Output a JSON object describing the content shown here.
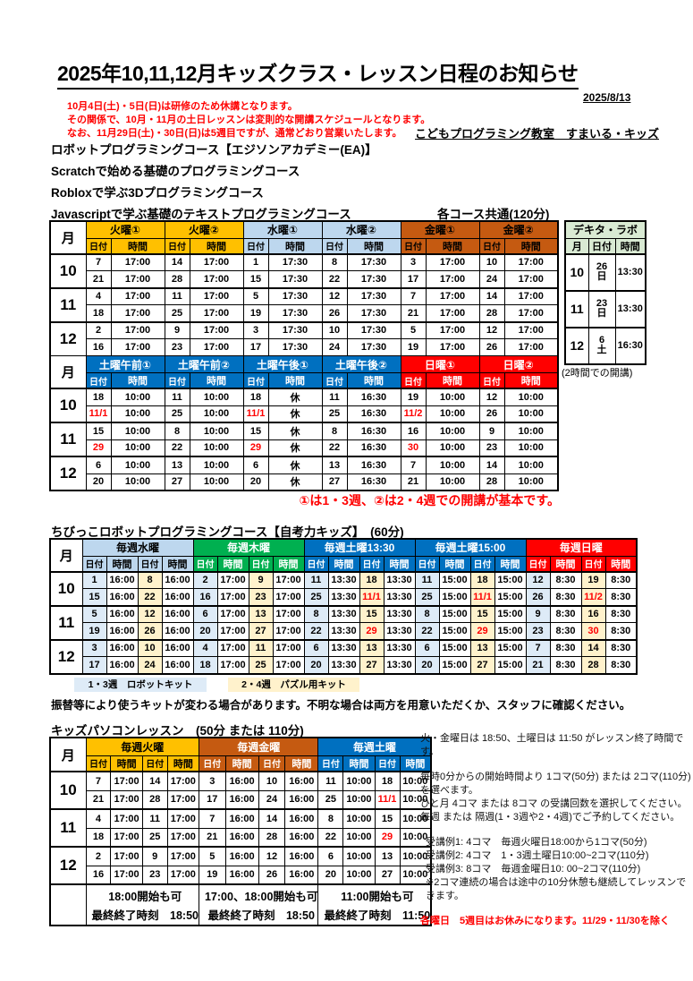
{
  "header": {
    "title": "2025年10,11,12月キッズクラス・レッスン日程のお知らせ",
    "doc_date": "2025/8/13",
    "notice_lines": [
      "10月4日(土)・5日(日)は研修のため休講となります。",
      "その関係で、10月・11月の土日レッスンは変則的な開講スケジュールとなります。",
      "なお、11月29日(土)・30日(日)は5週目ですが、通常どおり営業いたします。"
    ],
    "school_name": "こどもプログラミング教室　すまいる・キッズ",
    "course_lines": [
      "ロボットプログラミングコース【エジソンアカデミー(EA)】",
      "Scratchで始める基礎のプログラミングコース",
      "Robloxで学ぶ3Dプログラミングコース",
      "Javascriptで学ぶ基礎のテキストプログラミングコース"
    ],
    "common_duration_note": "各コース共通(120分)"
  },
  "conventions": {
    "red_prefix": "!",
    "rest_value": "休"
  },
  "colors": {
    "gold": "#FFC000",
    "light_blue": "#BDD7EE",
    "orange": "#C55A11",
    "blue": "#0070C0",
    "red": "#FF0000",
    "green": "#00B050",
    "pale_green": "#D9EAD3",
    "pale_blue_cell": "#DEEBF7",
    "cream_cell": "#FFF2CC",
    "red_text": "#FF0000"
  },
  "main_table": {
    "month_header": "月",
    "sub_date": "日付",
    "sub_time": "時間",
    "sections": [
      {
        "pairs": 1,
        "groups": [
          {
            "label": "火曜①",
            "bg": "#FFC000",
            "fg": "#000000"
          },
          {
            "label": "火曜②",
            "bg": "#FFC000",
            "fg": "#000000"
          },
          {
            "label": "水曜①",
            "bg": "#BDD7EE",
            "fg": "#000000"
          },
          {
            "label": "水曜②",
            "bg": "#BDD7EE",
            "fg": "#000000"
          },
          {
            "label": "金曜①",
            "bg": "#C55A11",
            "fg": "#000000"
          },
          {
            "label": "金曜②",
            "bg": "#C55A11",
            "fg": "#000000"
          }
        ],
        "months": [
          {
            "month": "10",
            "lines": [
              [
                "7",
                "17:00",
                "14",
                "17:00",
                "1",
                "17:30",
                "8",
                "17:30",
                "3",
                "17:00",
                "10",
                "17:00"
              ],
              [
                "21",
                "17:00",
                "28",
                "17:00",
                "15",
                "17:30",
                "22",
                "17:30",
                "17",
                "17:00",
                "24",
                "17:00"
              ]
            ]
          },
          {
            "month": "11",
            "lines": [
              [
                "4",
                "17:00",
                "11",
                "17:00",
                "5",
                "17:30",
                "12",
                "17:30",
                "7",
                "17:00",
                "14",
                "17:00"
              ],
              [
                "18",
                "17:00",
                "25",
                "17:00",
                "19",
                "17:30",
                "26",
                "17:30",
                "21",
                "17:00",
                "28",
                "17:00"
              ]
            ]
          },
          {
            "month": "12",
            "lines": [
              [
                "2",
                "17:00",
                "9",
                "17:00",
                "3",
                "17:30",
                "10",
                "17:30",
                "5",
                "17:00",
                "12",
                "17:00"
              ],
              [
                "16",
                "17:00",
                "23",
                "17:00",
                "17",
                "17:30",
                "24",
                "17:30",
                "19",
                "17:00",
                "26",
                "17:00"
              ]
            ]
          }
        ]
      },
      {
        "pairs": 1,
        "groups": [
          {
            "label": "土曜午前①",
            "bg": "#0070C0",
            "fg": "#FFFFFF"
          },
          {
            "label": "土曜午前②",
            "bg": "#0070C0",
            "fg": "#FFFFFF"
          },
          {
            "label": "土曜午後①",
            "bg": "#0070C0",
            "fg": "#FFFFFF"
          },
          {
            "label": "土曜午後②",
            "bg": "#0070C0",
            "fg": "#FFFFFF"
          },
          {
            "label": "日曜①",
            "bg": "#FF0000",
            "fg": "#FFFFFF"
          },
          {
            "label": "日曜②",
            "bg": "#FF0000",
            "fg": "#FFFFFF"
          }
        ],
        "months": [
          {
            "month": "10",
            "lines": [
              [
                "18",
                "10:00",
                "11",
                "10:00",
                "18",
                "休",
                "11",
                "16:30",
                "19",
                "10:00",
                "12",
                "10:00"
              ],
              [
                "!11/1",
                "10:00",
                "25",
                "10:00",
                "!11/1",
                "休",
                "25",
                "16:30",
                "!11/2",
                "10:00",
                "26",
                "10:00"
              ]
            ]
          },
          {
            "month": "11",
            "lines": [
              [
                "15",
                "10:00",
                "8",
                "10:00",
                "15",
                "休",
                "8",
                "16:30",
                "16",
                "10:00",
                "9",
                "10:00"
              ],
              [
                "!29",
                "10:00",
                "22",
                "10:00",
                "!29",
                "休",
                "22",
                "16:30",
                "!30",
                "10:00",
                "23",
                "10:00"
              ]
            ]
          },
          {
            "month": "12",
            "lines": [
              [
                "6",
                "10:00",
                "13",
                "10:00",
                "6",
                "休",
                "13",
                "16:30",
                "7",
                "10:00",
                "14",
                "10:00"
              ],
              [
                "20",
                "10:00",
                "27",
                "10:00",
                "20",
                "休",
                "27",
                "16:30",
                "21",
                "10:00",
                "28",
                "10:00"
              ]
            ]
          }
        ]
      }
    ]
  },
  "dekita_lab": {
    "title": "デキタ・ラボ",
    "month_header": "月",
    "sub_date": "日付",
    "sub_time": "時間",
    "header_bg": "#D9EAD3",
    "rows": [
      {
        "month": "10",
        "date": "26|日",
        "time": "13:30"
      },
      {
        "month": "11",
        "date": "23|日",
        "time": "13:30"
      },
      {
        "month": "12",
        "date": "6|土",
        "time": "16:30"
      }
    ],
    "note": "(2時間での開講)"
  },
  "week_note": "①は1・3週、②は2・4週での開講が基本です。",
  "chibikko_table": {
    "title": "ちびっこロボットプログラミングコース【自考力キッズ】　(60分)",
    "month_header": "月",
    "sub_date": "日付",
    "sub_time": "時間",
    "pairs": 2,
    "groups": [
      {
        "label": "毎週水曜",
        "bg": "#BDD7EE",
        "fg": "#000000"
      },
      {
        "label": "毎週木曜",
        "bg": "#00B050",
        "fg": "#FFFFFF"
      },
      {
        "label": "毎週土曜13:30",
        "bg": "#0070C0",
        "fg": "#FFFFFF"
      },
      {
        "label": "毎週土曜15:00",
        "bg": "#0070C0",
        "fg": "#FFFFFF"
      },
      {
        "label": "毎週日曜",
        "bg": "#FF0000",
        "fg": "#FFFFFF"
      }
    ],
    "months": [
      {
        "month": "10",
        "lines": [
          [
            "1",
            "16:00",
            "8",
            "16:00",
            "2",
            "17:00",
            "9",
            "17:00",
            "11",
            "13:30",
            "18",
            "13:30",
            "11",
            "15:00",
            "18",
            "15:00",
            "12",
            "8:30",
            "19",
            "8:30"
          ],
          [
            "15",
            "16:00",
            "22",
            "16:00",
            "16",
            "17:00",
            "23",
            "17:00",
            "25",
            "13:30",
            "!11/1",
            "13:30",
            "25",
            "15:00",
            "!11/1",
            "15:00",
            "26",
            "8:30",
            "!11/2",
            "8:30"
          ]
        ]
      },
      {
        "month": "11",
        "lines": [
          [
            "5",
            "16:00",
            "12",
            "16:00",
            "6",
            "17:00",
            "13",
            "17:00",
            "8",
            "13:30",
            "15",
            "13:30",
            "8",
            "15:00",
            "15",
            "15:00",
            "9",
            "8:30",
            "16",
            "8:30"
          ],
          [
            "19",
            "16:00",
            "26",
            "16:00",
            "20",
            "17:00",
            "27",
            "17:00",
            "22",
            "13:30",
            "!29",
            "13:30",
            "22",
            "15:00",
            "!29",
            "15:00",
            "23",
            "8:30",
            "!30",
            "8:30"
          ]
        ]
      },
      {
        "month": "12",
        "lines": [
          [
            "3",
            "16:00",
            "10",
            "16:00",
            "4",
            "17:00",
            "11",
            "17:00",
            "6",
            "13:30",
            "13",
            "13:30",
            "6",
            "15:00",
            "13",
            "15:00",
            "7",
            "8:30",
            "14",
            "8:30"
          ],
          [
            "17",
            "16:00",
            "24",
            "16:00",
            "18",
            "17:00",
            "25",
            "17:00",
            "20",
            "13:30",
            "27",
            "13:30",
            "20",
            "15:00",
            "27",
            "15:00",
            "21",
            "8:30",
            "28",
            "8:30"
          ]
        ]
      }
    ],
    "legend": [
      {
        "label": "1・3週　ロボットキット",
        "bg": "#DEEBF7"
      },
      {
        "label": "2・4週　パズル用キット",
        "bg": "#FFF2CC"
      }
    ],
    "kit_note": "振替等により使うキットが変わる場合があります。不明な場合は両方を用意いただくか、スタッフに確認ください。"
  },
  "pc_table": {
    "title": "キッズパソコンレッスン　(50分 または 110分)",
    "month_header": "月",
    "sub_date": "日付",
    "sub_time": "時間",
    "pairs": 2,
    "groups": [
      {
        "label": "毎週火曜",
        "bg": "#FFC000",
        "fg": "#000000"
      },
      {
        "label": "毎週金曜",
        "bg": "#C55A11",
        "fg": "#FFFFFF"
      },
      {
        "label": "毎週土曜",
        "bg": "#0070C0",
        "fg": "#FFFFFF"
      }
    ],
    "months": [
      {
        "month": "10",
        "lines": [
          [
            "7",
            "17:00",
            "14",
            "17:00",
            "3",
            "16:00",
            "10",
            "16:00",
            "11",
            "10:00",
            "18",
            "10:00"
          ],
          [
            "21",
            "17:00",
            "28",
            "17:00",
            "17",
            "16:00",
            "24",
            "16:00",
            "25",
            "10:00",
            "!11/1",
            "10:00"
          ]
        ]
      },
      {
        "month": "11",
        "lines": [
          [
            "4",
            "17:00",
            "11",
            "17:00",
            "7",
            "16:00",
            "14",
            "16:00",
            "8",
            "10:00",
            "15",
            "10:00"
          ],
          [
            "18",
            "17:00",
            "25",
            "17:00",
            "21",
            "16:00",
            "28",
            "16:00",
            "22",
            "10:00",
            "!29",
            "10:00"
          ]
        ]
      },
      {
        "month": "12",
        "lines": [
          [
            "2",
            "17:00",
            "9",
            "17:00",
            "5",
            "16:00",
            "12",
            "16:00",
            "6",
            "10:00",
            "13",
            "10:00"
          ],
          [
            "16",
            "17:00",
            "23",
            "17:00",
            "19",
            "16:00",
            "26",
            "16:00",
            "20",
            "10:00",
            "27",
            "10:00"
          ]
        ]
      }
    ],
    "footer": [
      {
        "line1": "18:00開始も可",
        "line2": "最終終了時刻　18:50"
      },
      {
        "line1": "17:00、18:00開始も可",
        "line2": "最終終了時刻　18:50"
      },
      {
        "line1": "11:00開始も可",
        "line2": "最終終了時刻　11:50"
      }
    ]
  },
  "side_notes": {
    "p1": "火・金曜日は 18:50、土曜日は 11:50 がレッスン終了時間です。",
    "p2": "毎時0分からの開始時間より 1コマ(50分) または 2コマ(110分)を選べます。",
    "p3": "ひと月 4コマ または 8コマ の受講回数を選択してください。",
    "p4": "毎週 または 隔週(1・3週や2・4週)でご予約してください。",
    "examples": [
      "受講例1: 4コマ　毎週火曜日18:00から1コマ(50分)",
      "受講例2: 4コマ　1・3週土曜日10:00~2コマ(110分)",
      "受講例3: 8コマ　毎週金曜日10: 00~2コマ(110分)",
      "※2コマ連続の場合は途中の10分休憩も継続してレッスンできます。"
    ],
    "holiday_note": "各曜日　5週目はお休みになります。11/29・11/30を除く"
  }
}
